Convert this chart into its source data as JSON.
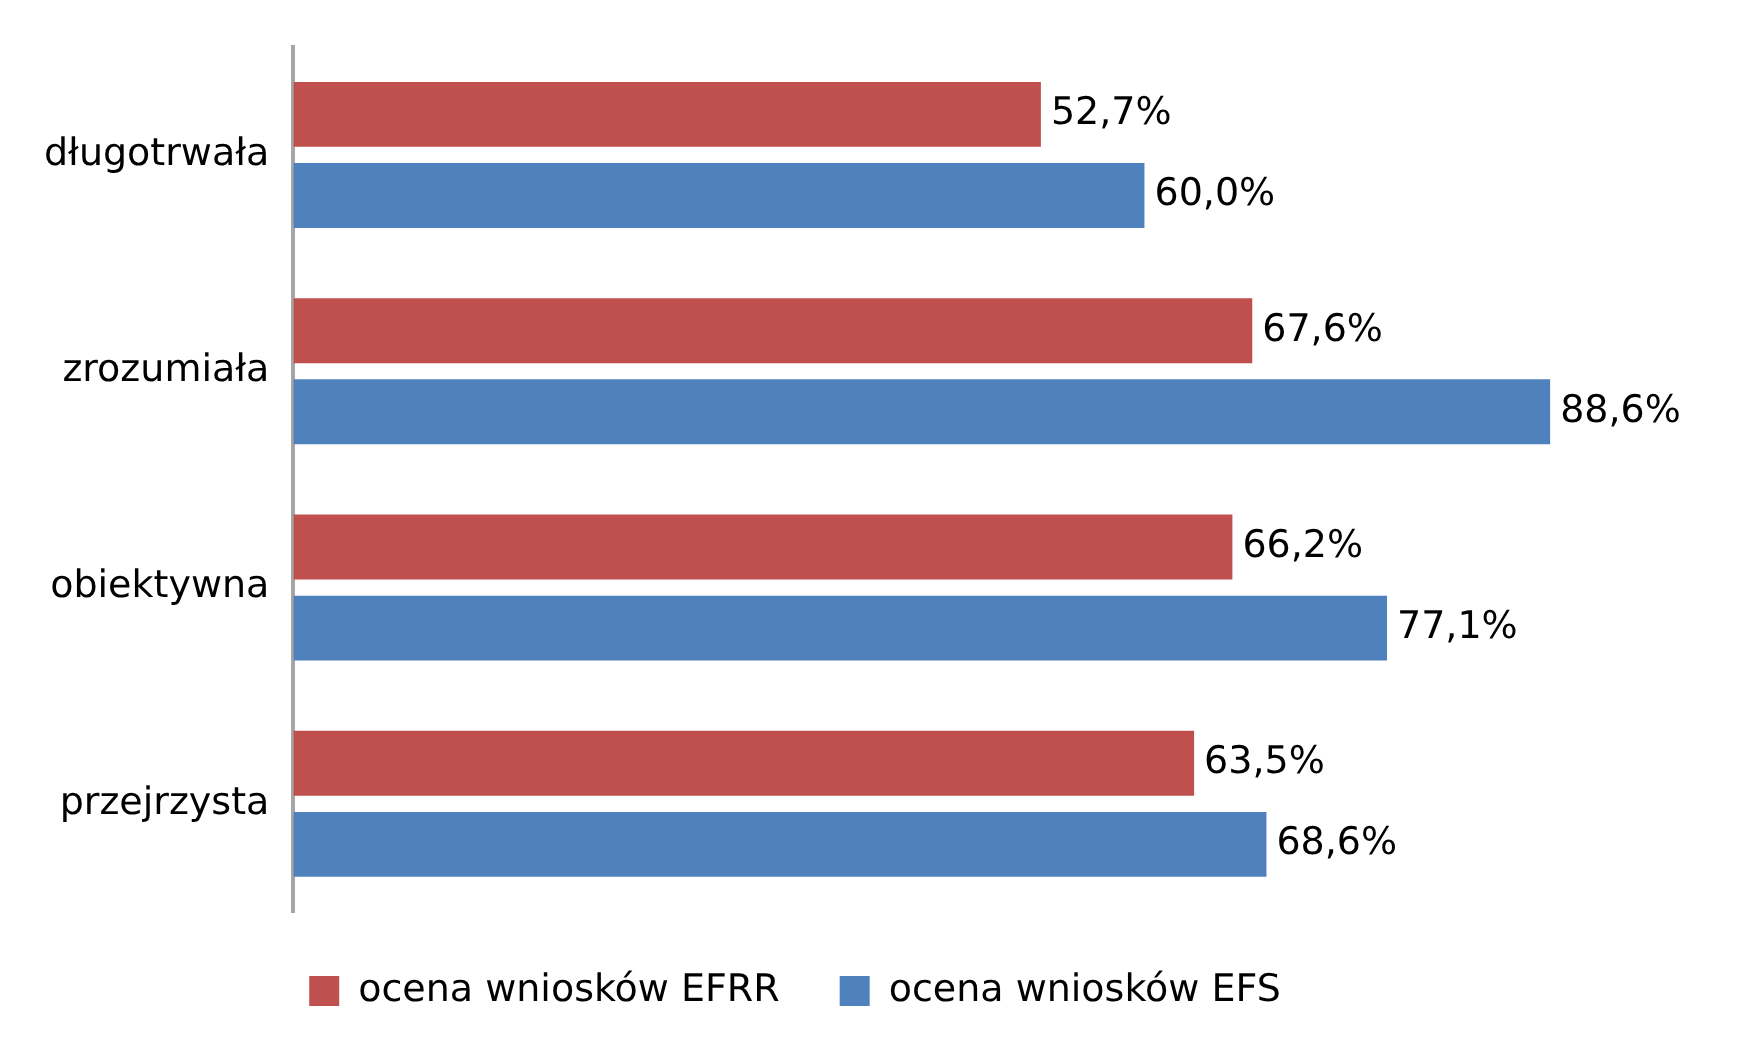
{
  "chart_data": {
    "type": "bar",
    "orientation": "horizontal",
    "categories": [
      "długotrwała",
      "zrozumiała",
      "obiektywna",
      "przejrzysta"
    ],
    "series": [
      {
        "name": "ocena wniosków EFRR",
        "color": "#c0504d",
        "values": [
          52.7,
          67.6,
          66.2,
          63.5
        ],
        "value_labels": [
          "52,7%",
          "67,6%",
          "66,2%",
          "63,5%"
        ]
      },
      {
        "name": "ocena wniosków EFS",
        "color": "#4f81bd",
        "values": [
          60.0,
          88.6,
          77.1,
          68.6
        ],
        "value_labels": [
          "60,0%",
          "88,6%",
          "77,1%",
          "68,6%"
        ]
      }
    ],
    "legend": "bottom"
  }
}
